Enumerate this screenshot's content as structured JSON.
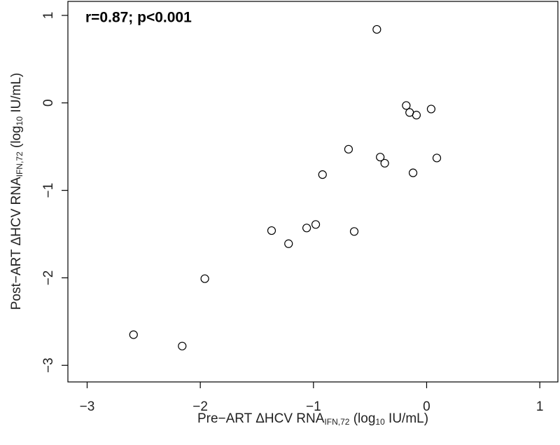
{
  "chart_data": {
    "type": "scatter",
    "annotation": "r=0.87; p<0.001",
    "xlabel_parts": [
      "Pre−ART ΔHCV RNA",
      "IFN,72",
      " (log",
      "10",
      " IU/mL)"
    ],
    "ylabel_parts": [
      "Post−ART ΔHCV RNA",
      "IFN,72",
      " (log",
      "10",
      " IU/mL)"
    ],
    "x": [
      -2.59,
      -2.16,
      -1.96,
      -1.37,
      -1.22,
      -1.06,
      -0.98,
      -0.92,
      -0.64,
      -0.69,
      -0.44,
      -0.41,
      -0.37,
      -0.18,
      -0.15,
      -0.09,
      -0.12,
      0.04,
      0.09
    ],
    "values": [
      -2.65,
      -2.78,
      -2.01,
      -1.46,
      -1.61,
      -1.43,
      -1.39,
      -0.82,
      -1.47,
      -0.53,
      0.84,
      -0.62,
      -0.69,
      -0.03,
      -0.11,
      -0.14,
      -0.8,
      -0.07,
      -0.63
    ],
    "color": "#000000",
    "xlim": [
      -3.17,
      1.16
    ],
    "ylim": [
      -3.19,
      1.16
    ],
    "xticks": [
      {
        "value": -3,
        "label": "−3"
      },
      {
        "value": -2,
        "label": "−2"
      },
      {
        "value": -1,
        "label": "−1"
      },
      0,
      1
    ],
    "yticks": [
      {
        "value": -3,
        "label": "−3"
      },
      {
        "value": -2,
        "label": "−2"
      },
      {
        "value": -1,
        "label": "−1"
      },
      0,
      1
    ],
    "grid": false
  }
}
